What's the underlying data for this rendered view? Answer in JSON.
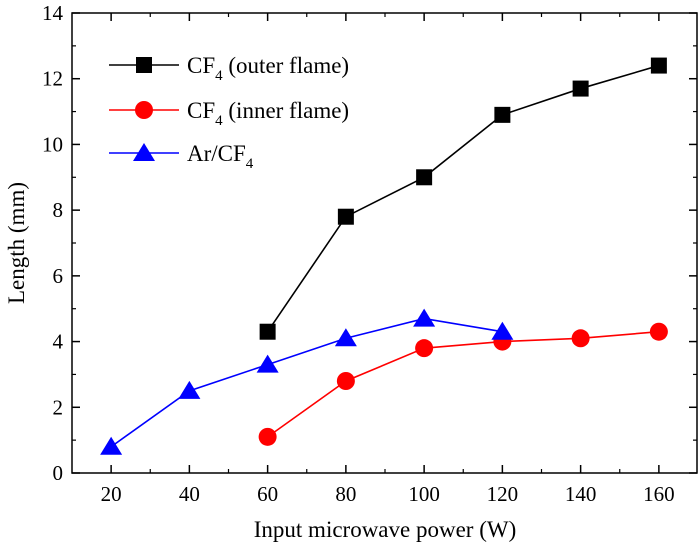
{
  "chart_data": {
    "type": "line",
    "title": "",
    "xlabel": "Input microwave power (W)",
    "ylabel": "Length (mm)",
    "xlim": [
      10,
      170
    ],
    "ylim": [
      0,
      14
    ],
    "xticks": [
      20,
      40,
      60,
      80,
      100,
      120,
      140,
      160
    ],
    "yticks": [
      0,
      2,
      4,
      6,
      8,
      10,
      12,
      14
    ],
    "grid": false,
    "legend_position": "top-left",
    "series": [
      {
        "name": "CF4 (outer flame)",
        "legend_main": "CF",
        "legend_sub": "4",
        "legend_rest": " (outer flame)",
        "color": "#000000",
        "marker": "square",
        "x": [
          60,
          80,
          100,
          120,
          140,
          160
        ],
        "y": [
          4.3,
          7.8,
          9.0,
          10.9,
          11.7,
          12.4
        ]
      },
      {
        "name": "CF4 (inner flame)",
        "legend_main": "CF",
        "legend_sub": "4",
        "legend_rest": " (inner flame)",
        "color": "#ff0000",
        "marker": "circle",
        "x": [
          60,
          80,
          100,
          120,
          140,
          160
        ],
        "y": [
          1.1,
          2.8,
          3.8,
          4.0,
          4.1,
          4.3
        ]
      },
      {
        "name": "Ar/CF4",
        "legend_main": "Ar/CF",
        "legend_sub": "4",
        "legend_rest": "",
        "color": "#0000ff",
        "marker": "triangle",
        "x": [
          20,
          40,
          60,
          80,
          100,
          120
        ],
        "y": [
          0.8,
          2.5,
          3.3,
          4.1,
          4.7,
          4.3
        ]
      }
    ]
  }
}
